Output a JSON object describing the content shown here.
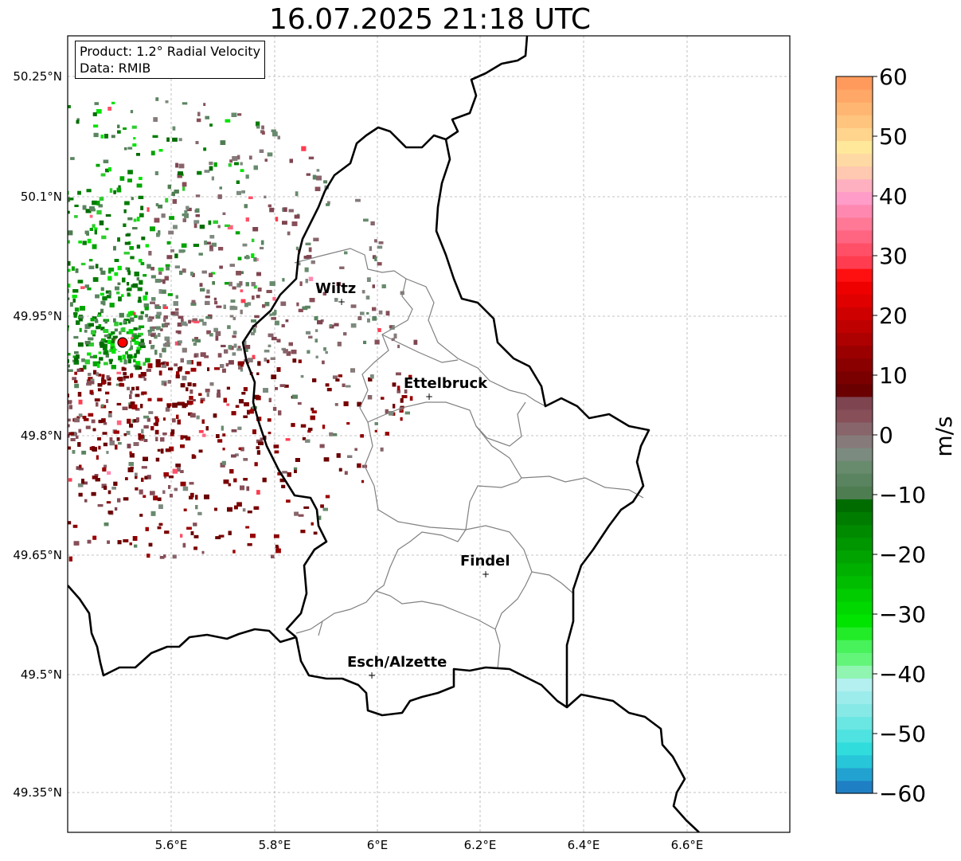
{
  "title": "16.07.2025 21:18 UTC",
  "info": {
    "product": "Product: 1.2° Radial Velocity",
    "source": "Data: RMIB"
  },
  "axes": {
    "lat_ticks": [
      "50.25°N",
      "50.1°N",
      "49.95°N",
      "49.8°N",
      "49.65°N",
      "49.5°N",
      "49.35°N"
    ],
    "lon_ticks": [
      "5.6°E",
      "5.8°E",
      "6°E",
      "6.2°E",
      "6.4°E",
      "6.6°E"
    ]
  },
  "cities": [
    {
      "name": "Wiltz"
    },
    {
      "name": "Ettelbruck"
    },
    {
      "name": "Findel"
    },
    {
      "name": "Esch/Alzette"
    }
  ],
  "colorbar": {
    "label": "m/s",
    "ticks": [
      "60",
      "50",
      "40",
      "30",
      "20",
      "10",
      "0",
      "−10",
      "−20",
      "−30",
      "−40",
      "−50",
      "−60"
    ],
    "min": -60,
    "max": 60,
    "colors": [
      "#1f7fc4",
      "#22a2d1",
      "#27c6d9",
      "#30dcdc",
      "#4ee3e0",
      "#6ae6e3",
      "#86e9e6",
      "#9ceceb",
      "#b3f0ef",
      "#8ff5b1",
      "#63f57a",
      "#48f25b",
      "#22ec27",
      "#00e400",
      "#00d800",
      "#00cc00",
      "#00bd00",
      "#00b000",
      "#00a300",
      "#009600",
      "#008a00",
      "#007c00",
      "#006c00",
      "#4f7d52",
      "#5a8460",
      "#688b6d",
      "#7c8b7f",
      "#867a7a",
      "#87656b",
      "#874f58",
      "#7e4550",
      "#6a0000",
      "#7a0000",
      "#8a0000",
      "#9a0000",
      "#ad0000",
      "#bf0000",
      "#cf0000",
      "#e00000",
      "#ef0000",
      "#ff1010",
      "#ff3c50",
      "#ff5068",
      "#ff6480",
      "#ff7896",
      "#ff88b0",
      "#ff9cc8",
      "#ffb0c0",
      "#ffc8b0",
      "#ffd9a3",
      "#ffe89a",
      "#ffd48c",
      "#ffc47e",
      "#ffb672",
      "#ffa766",
      "#ff9a5c"
    ]
  },
  "radar": {
    "site_color": "#ff0000",
    "approaching_color": "#006c00",
    "receding_color": "#6a0000",
    "zero_color": "#7c8b7f"
  }
}
